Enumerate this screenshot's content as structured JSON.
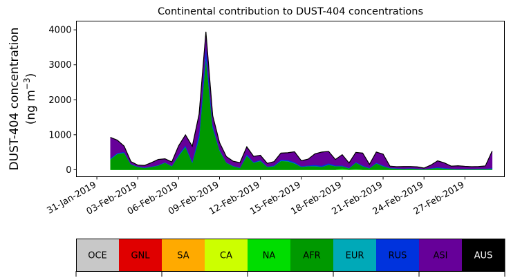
{
  "chart_data": {
    "type": "area",
    "title": "Continental contribution to DUST-404 concentrations",
    "ylabel_line1": "DUST-404 concentration",
    "ylabel_line2_pre": "(ng m",
    "ylabel_line2_sup": "−3",
    "ylabel_line2_post": ")",
    "xlabel": "",
    "ylim": [
      -200,
      4250
    ],
    "xlim": [
      -1.5,
      29.9
    ],
    "yticks": [
      0,
      1000,
      2000,
      3000,
      4000
    ],
    "ytick_labels": [
      "0",
      "1000",
      "2000",
      "3000",
      "4000"
    ],
    "xticks": [
      0,
      3,
      6,
      9,
      12,
      15,
      18,
      21,
      24,
      27
    ],
    "xtick_labels": [
      "31-Jan-2019",
      "03-Feb-2019",
      "06-Feb-2019",
      "09-Feb-2019",
      "12-Feb-2019",
      "15-Feb-2019",
      "18-Feb-2019",
      "21-Feb-2019",
      "24-Feb-2019",
      "27-Feb-2019"
    ],
    "grid": false,
    "x": [
      1,
      1.5,
      2,
      2.5,
      3,
      3.5,
      4,
      4.5,
      5,
      5.5,
      6,
      6.5,
      7,
      7.5,
      8,
      8.5,
      9,
      9.5,
      10,
      10.5,
      11,
      11.5,
      12,
      12.5,
      13,
      13.5,
      14,
      14.5,
      15,
      15.5,
      16,
      16.5,
      17,
      17.5,
      18,
      18.5,
      19,
      19.5,
      20,
      20.5,
      21,
      21.5,
      22,
      22.5,
      23,
      23.5,
      24,
      24.5,
      25,
      25.5,
      26,
      26.5,
      27,
      27.5,
      28,
      28.5,
      29
    ],
    "series": [
      {
        "name": "NA",
        "color": "#00dd00",
        "values": [
          0,
          0,
          0,
          0,
          0,
          0,
          0,
          0,
          0,
          0,
          0,
          0,
          0,
          0,
          0,
          0,
          0,
          0,
          0,
          0,
          0,
          0,
          0,
          0,
          0,
          0,
          0,
          0,
          0,
          0,
          0,
          0,
          0,
          0,
          40,
          0,
          20,
          0,
          0,
          0,
          0,
          0,
          0,
          0,
          0,
          0,
          0,
          0,
          0,
          0,
          0,
          0,
          0,
          0,
          0,
          0,
          0
        ]
      },
      {
        "name": "AFR",
        "color": "#009900",
        "values": [
          300,
          450,
          480,
          150,
          80,
          50,
          80,
          120,
          200,
          100,
          400,
          650,
          200,
          900,
          3200,
          1200,
          550,
          200,
          100,
          50,
          400,
          200,
          250,
          80,
          100,
          250,
          240,
          180,
          80,
          100,
          100,
          80,
          140,
          100,
          60,
          40,
          180,
          100,
          40,
          180,
          100,
          40,
          30,
          20,
          30,
          20,
          10,
          30,
          50,
          30,
          20,
          10,
          15,
          10,
          15,
          15,
          20
        ]
      },
      {
        "name": "EUR",
        "color": "#00a9b8",
        "values": [
          10,
          10,
          10,
          5,
          5,
          5,
          5,
          5,
          5,
          5,
          10,
          10,
          5,
          20,
          40,
          20,
          10,
          5,
          5,
          5,
          10,
          5,
          10,
          5,
          5,
          10,
          10,
          10,
          5,
          5,
          10,
          5,
          5,
          5,
          5,
          5,
          5,
          5,
          5,
          5,
          5,
          5,
          5,
          5,
          5,
          5,
          5,
          5,
          5,
          5,
          5,
          5,
          5,
          5,
          5,
          5,
          10
        ]
      },
      {
        "name": "RUS",
        "color": "#0033dd",
        "values": [
          20,
          20,
          20,
          10,
          10,
          10,
          10,
          10,
          10,
          10,
          30,
          40,
          40,
          150,
          300,
          80,
          20,
          10,
          10,
          10,
          40,
          20,
          20,
          10,
          20,
          30,
          30,
          30,
          20,
          20,
          30,
          30,
          40,
          20,
          20,
          10,
          20,
          20,
          10,
          20,
          20,
          10,
          10,
          10,
          10,
          10,
          5,
          10,
          20,
          20,
          10,
          10,
          10,
          10,
          10,
          10,
          20
        ]
      },
      {
        "name": "ASI",
        "color": "#660099",
        "values": [
          590,
          360,
          160,
          65,
          35,
          55,
          105,
          155,
          95,
          105,
          240,
          290,
          420,
          510,
          390,
          240,
          190,
          160,
          125,
          135,
          200,
          155,
          130,
          85,
          105,
          180,
          200,
          290,
          150,
          175,
          310,
          385,
          335,
          165,
          300,
          135,
          265,
          345,
          95,
          295,
          315,
          45,
          40,
          55,
          45,
          45,
          25,
          85,
          175,
          135,
          65,
          85,
          65,
          60,
          60,
          75,
          480
        ]
      },
      {
        "name": "AUS",
        "color": "#000000",
        "values": [
          5,
          5,
          5,
          2,
          2,
          2,
          2,
          2,
          2,
          2,
          5,
          5,
          5,
          10,
          15,
          5,
          5,
          2,
          2,
          2,
          5,
          2,
          2,
          2,
          2,
          5,
          5,
          5,
          2,
          2,
          5,
          5,
          5,
          2,
          5,
          2,
          5,
          5,
          2,
          5,
          5,
          2,
          2,
          2,
          2,
          2,
          2,
          2,
          5,
          5,
          2,
          2,
          2,
          2,
          2,
          2,
          5
        ]
      }
    ]
  },
  "legend": {
    "items": [
      {
        "label": "OCE",
        "color": "#c8c8c8",
        "text_color": "#000000"
      },
      {
        "label": "GNL",
        "color": "#e00000",
        "text_color": "#000000"
      },
      {
        "label": "SA",
        "color": "#ffaa00",
        "text_color": "#000000"
      },
      {
        "label": "CA",
        "color": "#ccff00",
        "text_color": "#000000"
      },
      {
        "label": "NA",
        "color": "#00dd00",
        "text_color": "#000000"
      },
      {
        "label": "AFR",
        "color": "#009900",
        "text_color": "#000000"
      },
      {
        "label": "EUR",
        "color": "#00a9b8",
        "text_color": "#000000"
      },
      {
        "label": "RUS",
        "color": "#0033dd",
        "text_color": "#000000"
      },
      {
        "label": "ASI",
        "color": "#660099",
        "text_color": "#000000"
      },
      {
        "label": "AUS",
        "color": "#000000",
        "text_color": "#ffffff"
      }
    ]
  }
}
